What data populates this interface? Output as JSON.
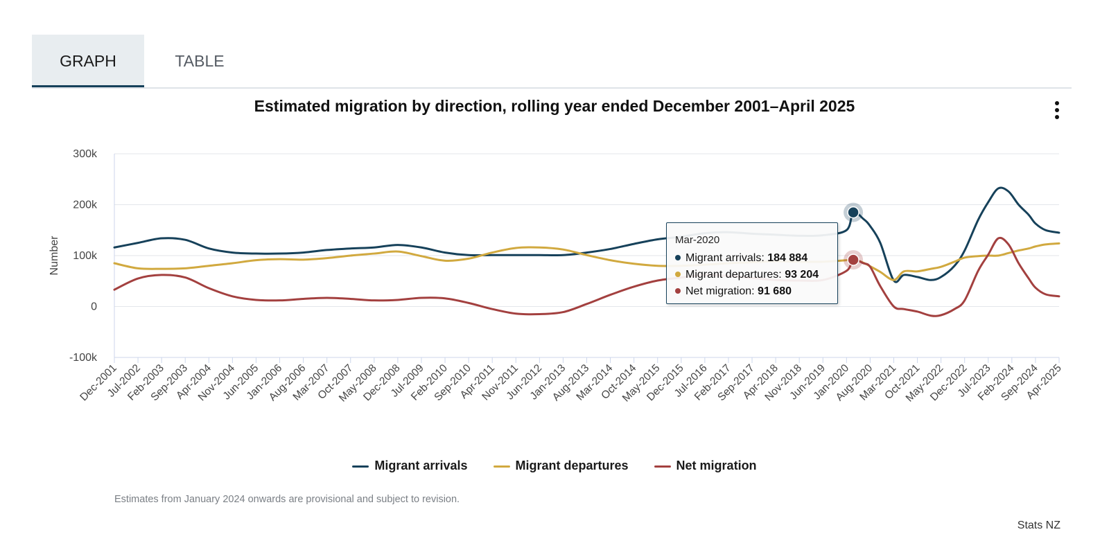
{
  "tabs": [
    {
      "label": "GRAPH",
      "active": true
    },
    {
      "label": "TABLE",
      "active": false
    }
  ],
  "colors": {
    "arrivals": "#16415a",
    "departures": "#d1a93f",
    "net": "#a3403f"
  },
  "footnote": "Estimates from January 2024 onwards are provisional and subject to revision.",
  "source": "Stats NZ",
  "tooltip": {
    "date": "Mar-2020",
    "rows": [
      {
        "label": "Migrant arrivals: ",
        "value": "184 884"
      },
      {
        "label": "Migrant departures: ",
        "value": "93 204"
      },
      {
        "label": "Net migration: ",
        "value": "91 680"
      }
    ]
  },
  "chart_data": {
    "type": "line",
    "title": "Estimated migration by direction, rolling year ended December 2001–April 2025",
    "ylabel": "Number",
    "xlabel": "",
    "ylim": [
      -100000,
      300000
    ],
    "yticks": [
      -100000,
      0,
      100000,
      200000,
      300000
    ],
    "ytick_labels": [
      "-100k",
      "0",
      "100k",
      "200k",
      "300k"
    ],
    "xlim": [
      "2001-12",
      "2025-04"
    ],
    "xtick_labels": [
      "Dec-2001",
      "Jul-2002",
      "Feb-2003",
      "Sep-2003",
      "Apr-2004",
      "Nov-2004",
      "Jun-2005",
      "Jan-2006",
      "Aug-2006",
      "Mar-2007",
      "Oct-2007",
      "May-2008",
      "Dec-2008",
      "Jul-2009",
      "Feb-2010",
      "Sep-2010",
      "Apr-2011",
      "Nov-2011",
      "Jun-2012",
      "Jan-2013",
      "Aug-2013",
      "Mar-2014",
      "Oct-2014",
      "May-2015",
      "Dec-2015",
      "Jul-2016",
      "Feb-2017",
      "Sep-2017",
      "Apr-2018",
      "Nov-2018",
      "Jun-2019",
      "Jan-2020",
      "Aug-2020",
      "Mar-2021",
      "Oct-2021",
      "May-2022",
      "Dec-2022",
      "Jul-2023",
      "Feb-2024",
      "Sep-2024",
      "Apr-2025"
    ],
    "grid": true,
    "legend_position": "bottom",
    "series": [
      {
        "name": "Migrant arrivals",
        "key": "arrivals",
        "points": [
          [
            "2001-12",
            116000
          ],
          [
            "2002-07",
            125000
          ],
          [
            "2003-02",
            134000
          ],
          [
            "2003-09",
            131000
          ],
          [
            "2004-04",
            114000
          ],
          [
            "2004-11",
            106000
          ],
          [
            "2005-06",
            104000
          ],
          [
            "2006-01",
            104000
          ],
          [
            "2006-08",
            106000
          ],
          [
            "2007-03",
            111000
          ],
          [
            "2007-10",
            114000
          ],
          [
            "2008-05",
            116000
          ],
          [
            "2008-12",
            121000
          ],
          [
            "2009-07",
            116000
          ],
          [
            "2010-02",
            106000
          ],
          [
            "2010-09",
            101000
          ],
          [
            "2011-04",
            101000
          ],
          [
            "2011-11",
            101000
          ],
          [
            "2012-06",
            101000
          ],
          [
            "2013-01",
            101000
          ],
          [
            "2013-08",
            106000
          ],
          [
            "2014-03",
            113000
          ],
          [
            "2014-10",
            123000
          ],
          [
            "2015-05",
            132000
          ],
          [
            "2015-12",
            137000
          ],
          [
            "2016-07",
            144000
          ],
          [
            "2017-02",
            146000
          ],
          [
            "2017-09",
            143000
          ],
          [
            "2018-04",
            141000
          ],
          [
            "2018-11",
            139000
          ],
          [
            "2019-06",
            140000
          ],
          [
            "2020-01",
            150000
          ],
          [
            "2020-03",
            184884
          ],
          [
            "2020-06",
            172000
          ],
          [
            "2020-08",
            158000
          ],
          [
            "2020-11",
            125000
          ],
          [
            "2021-03",
            51000
          ],
          [
            "2021-06",
            62000
          ],
          [
            "2021-10",
            58000
          ],
          [
            "2022-02",
            52000
          ],
          [
            "2022-05",
            58000
          ],
          [
            "2022-09",
            80000
          ],
          [
            "2022-12",
            110000
          ],
          [
            "2023-04",
            170000
          ],
          [
            "2023-07",
            205000
          ],
          [
            "2023-10",
            232000
          ],
          [
            "2024-01",
            226000
          ],
          [
            "2024-04",
            200000
          ],
          [
            "2024-07",
            180000
          ],
          [
            "2024-09",
            163000
          ],
          [
            "2024-12",
            150000
          ],
          [
            "2025-04",
            145000
          ]
        ]
      },
      {
        "name": "Migrant departures",
        "key": "departures",
        "points": [
          [
            "2001-12",
            85000
          ],
          [
            "2002-07",
            75000
          ],
          [
            "2003-02",
            74000
          ],
          [
            "2003-09",
            75000
          ],
          [
            "2004-04",
            80000
          ],
          [
            "2004-11",
            85000
          ],
          [
            "2005-06",
            91000
          ],
          [
            "2006-01",
            93000
          ],
          [
            "2006-08",
            92000
          ],
          [
            "2007-03",
            95000
          ],
          [
            "2007-10",
            100000
          ],
          [
            "2008-05",
            104000
          ],
          [
            "2008-12",
            108000
          ],
          [
            "2009-07",
            99000
          ],
          [
            "2010-02",
            90000
          ],
          [
            "2010-09",
            94000
          ],
          [
            "2011-04",
            106000
          ],
          [
            "2011-11",
            115000
          ],
          [
            "2012-06",
            116000
          ],
          [
            "2013-01",
            112000
          ],
          [
            "2013-08",
            101000
          ],
          [
            "2014-03",
            91000
          ],
          [
            "2014-10",
            84000
          ],
          [
            "2015-05",
            80000
          ],
          [
            "2015-12",
            80000
          ],
          [
            "2016-07",
            82000
          ],
          [
            "2017-02",
            85000
          ],
          [
            "2017-09",
            87000
          ],
          [
            "2018-04",
            89000
          ],
          [
            "2018-11",
            88000
          ],
          [
            "2019-06",
            88000
          ],
          [
            "2020-01",
            91000
          ],
          [
            "2020-03",
            93204
          ],
          [
            "2020-06",
            86000
          ],
          [
            "2020-08",
            79000
          ],
          [
            "2020-11",
            68000
          ],
          [
            "2021-03",
            52000
          ],
          [
            "2021-06",
            69000
          ],
          [
            "2021-10",
            69000
          ],
          [
            "2022-02",
            74000
          ],
          [
            "2022-05",
            78000
          ],
          [
            "2022-09",
            88000
          ],
          [
            "2022-12",
            96000
          ],
          [
            "2023-04",
            99000
          ],
          [
            "2023-07",
            100000
          ],
          [
            "2023-10",
            100000
          ],
          [
            "2024-01",
            105000
          ],
          [
            "2024-04",
            110000
          ],
          [
            "2024-07",
            114000
          ],
          [
            "2024-09",
            118000
          ],
          [
            "2024-12",
            122000
          ],
          [
            "2025-04",
            124000
          ]
        ]
      },
      {
        "name": "Net migration",
        "key": "net",
        "points": [
          [
            "2001-12",
            33000
          ],
          [
            "2002-07",
            55000
          ],
          [
            "2003-02",
            62000
          ],
          [
            "2003-09",
            57000
          ],
          [
            "2004-04",
            36000
          ],
          [
            "2004-11",
            20000
          ],
          [
            "2005-06",
            13000
          ],
          [
            "2006-01",
            12000
          ],
          [
            "2006-08",
            15000
          ],
          [
            "2007-03",
            17000
          ],
          [
            "2007-10",
            15000
          ],
          [
            "2008-05",
            12000
          ],
          [
            "2008-12",
            13000
          ],
          [
            "2009-07",
            17000
          ],
          [
            "2010-02",
            16000
          ],
          [
            "2010-09",
            7000
          ],
          [
            "2011-04",
            -5000
          ],
          [
            "2011-11",
            -14000
          ],
          [
            "2012-06",
            -15000
          ],
          [
            "2013-01",
            -11000
          ],
          [
            "2013-08",
            5000
          ],
          [
            "2014-03",
            23000
          ],
          [
            "2014-10",
            39000
          ],
          [
            "2015-05",
            51000
          ],
          [
            "2015-12",
            57000
          ],
          [
            "2016-07",
            62000
          ],
          [
            "2017-02",
            60000
          ],
          [
            "2017-09",
            56000
          ],
          [
            "2018-04",
            52000
          ],
          [
            "2018-11",
            51000
          ],
          [
            "2019-06",
            52000
          ],
          [
            "2020-01",
            70000
          ],
          [
            "2020-03",
            91680
          ],
          [
            "2020-06",
            85000
          ],
          [
            "2020-08",
            78000
          ],
          [
            "2020-11",
            40000
          ],
          [
            "2021-03",
            0
          ],
          [
            "2021-06",
            -5000
          ],
          [
            "2021-10",
            -10000
          ],
          [
            "2022-02",
            -18000
          ],
          [
            "2022-05",
            -17000
          ],
          [
            "2022-09",
            -5000
          ],
          [
            "2022-12",
            12000
          ],
          [
            "2023-04",
            70000
          ],
          [
            "2023-07",
            102000
          ],
          [
            "2023-10",
            134000
          ],
          [
            "2024-01",
            122000
          ],
          [
            "2024-04",
            85000
          ],
          [
            "2024-07",
            55000
          ],
          [
            "2024-09",
            37000
          ],
          [
            "2024-12",
            24000
          ],
          [
            "2025-04",
            20000
          ]
        ]
      }
    ],
    "highlight": {
      "date": "2020-03"
    }
  }
}
